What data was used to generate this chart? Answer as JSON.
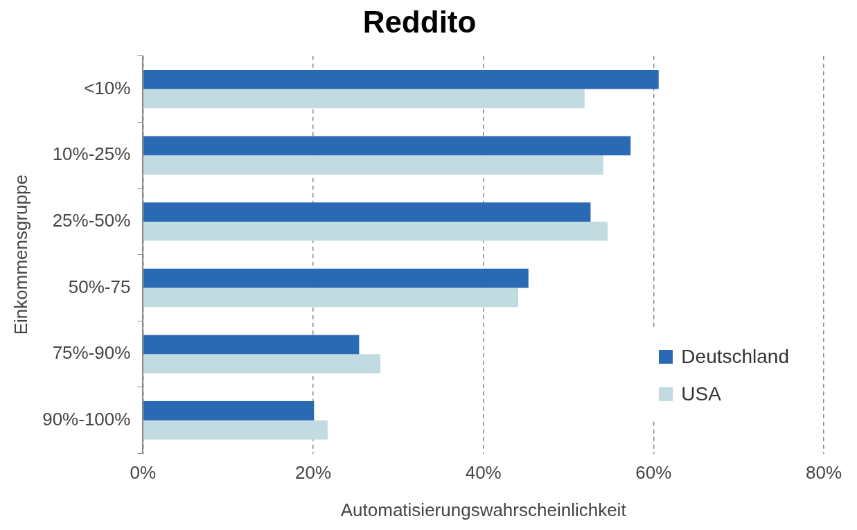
{
  "chart_data": {
    "type": "bar",
    "orientation": "horizontal",
    "title": "Reddito",
    "xlabel": "Automatisierungswahrscheinlichkeit",
    "ylabel": "Einkommensgruppe",
    "categories": [
      "<10%",
      "10%-25%",
      "25%-50%",
      "50%-75",
      "75%-90%",
      "90%-100%"
    ],
    "series": [
      {
        "name": "Deutschland",
        "color": "#2a6ab5",
        "values": [
          60.6,
          57.3,
          52.6,
          45.3,
          25.4,
          20.1
        ]
      },
      {
        "name": "USA",
        "color": "#c2dbe0",
        "values": [
          51.9,
          54.1,
          54.6,
          44.1,
          27.9,
          21.7
        ]
      }
    ],
    "xlim": [
      0,
      80
    ],
    "xticks": [
      {
        "value": 0,
        "label": "0%"
      },
      {
        "value": 20,
        "label": "20%"
      },
      {
        "value": 40,
        "label": "40%"
      },
      {
        "value": 60,
        "label": "60%"
      },
      {
        "value": 80,
        "label": "80%"
      }
    ],
    "grid": "x",
    "legend": "bottom right"
  }
}
